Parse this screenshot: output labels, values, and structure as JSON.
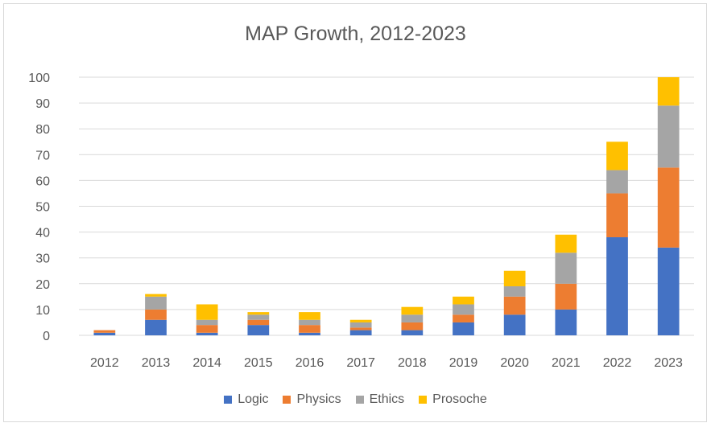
{
  "chart_data": {
    "type": "bar",
    "stacked": true,
    "title": "MAP Growth, 2012-2023",
    "xlabel": "",
    "ylabel": "",
    "ylim": [
      0,
      100
    ],
    "yticks": [
      0,
      10,
      20,
      30,
      40,
      50,
      60,
      70,
      80,
      90,
      100
    ],
    "grid": true,
    "legend_position": "bottom",
    "categories": [
      "2012",
      "2013",
      "2014",
      "2015",
      "2016",
      "2017",
      "2018",
      "2019",
      "2020",
      "2021",
      "2022",
      "2023"
    ],
    "series": [
      {
        "name": "Logic",
        "color": "#4472c4",
        "values": [
          1,
          6,
          1,
          4,
          1,
          2,
          2,
          5,
          8,
          10,
          38,
          34
        ]
      },
      {
        "name": "Physics",
        "color": "#ed7d31",
        "values": [
          1,
          4,
          3,
          2,
          3,
          1,
          3,
          3,
          7,
          10,
          17,
          31
        ]
      },
      {
        "name": "Ethics",
        "color": "#a5a5a5",
        "values": [
          0,
          5,
          2,
          2,
          2,
          2,
          3,
          4,
          4,
          12,
          9,
          24
        ]
      },
      {
        "name": "Prosoche",
        "color": "#ffc000",
        "values": [
          0,
          1,
          6,
          1,
          3,
          1,
          3,
          3,
          6,
          7,
          11,
          11
        ]
      }
    ]
  }
}
